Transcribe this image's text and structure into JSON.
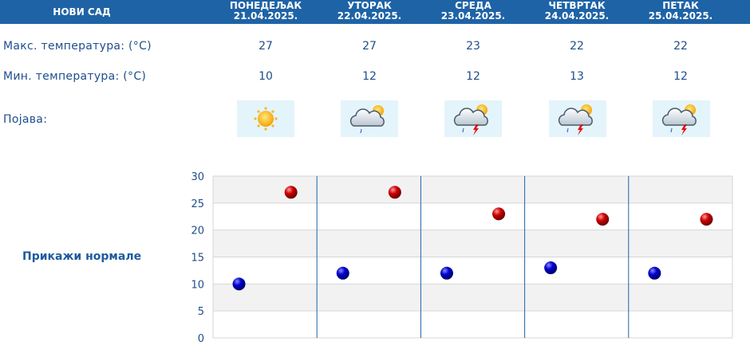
{
  "header": {
    "city": "НОВИ САД",
    "days": [
      {
        "name": "ПОНЕДЕЉАК",
        "date": "21.04.2025."
      },
      {
        "name": "УТОРАК",
        "date": "22.04.2025."
      },
      {
        "name": "СРЕДА",
        "date": "23.04.2025."
      },
      {
        "name": "ЧЕТВРТАК",
        "date": "24.04.2025."
      },
      {
        "name": "ПЕТАК",
        "date": "25.04.2025."
      }
    ]
  },
  "rows": {
    "max_label": "Макс. температура: (°C)",
    "min_label": "Мин. температура: (°C)",
    "phenomenon_label": "Појава:",
    "max_values": [
      "27",
      "27",
      "23",
      "22",
      "22"
    ],
    "min_values": [
      "10",
      "12",
      "12",
      "13",
      "12"
    ],
    "icons": [
      "sun-icon",
      "cloud-sun-rain-icon",
      "cloud-sun-thunderstorm-icon",
      "cloud-sun-thunderstorm-icon",
      "cloud-sun-thunderstorm-icon"
    ]
  },
  "normals_link": "Прикажи нормале",
  "colors": {
    "header_bg": "#1e63a6",
    "label_text": "#1f4e8c",
    "max_marker": "#cc0000",
    "min_marker": "#0000cc",
    "grid_band": "#f2f2f2",
    "separator": "#1e63a6"
  },
  "chart_data": {
    "type": "scatter",
    "ylim": [
      0,
      30
    ],
    "yticks": [
      "0",
      "5",
      "10",
      "15",
      "20",
      "25",
      "30"
    ],
    "grid": true,
    "categories": [
      "21.04.2025.",
      "22.04.2025.",
      "23.04.2025.",
      "24.04.2025.",
      "25.04.2025."
    ],
    "series": [
      {
        "values": [
          10,
          12,
          12,
          13,
          12
        ]
      },
      {
        "values": [
          27,
          27,
          23,
          22,
          22
        ]
      }
    ]
  }
}
